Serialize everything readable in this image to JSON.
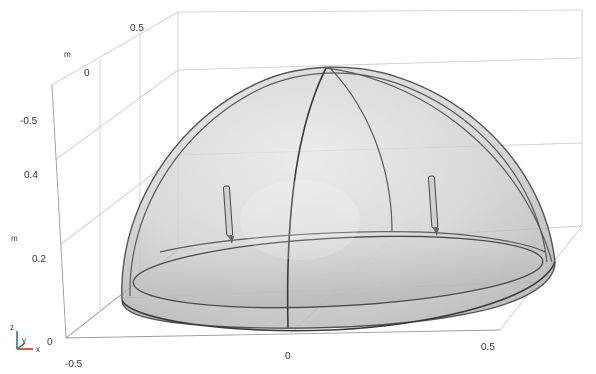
{
  "viewport": {
    "axis_labels": {
      "y_top_tick_05": "0.5",
      "y_unit_m": "m",
      "y_tick_0": "0",
      "y_tick_neg05": "-0.5",
      "z_tick_04": "0.4",
      "z_unit_m": "m",
      "z_tick_02": "0.2",
      "z_tick_0": "0",
      "x_tick_neg05": "-0.5",
      "x_tick_0": "0",
      "x_tick_05": "0.5"
    },
    "triad": {
      "z": "z",
      "y": "y",
      "x": "x"
    },
    "colors": {
      "background": "#ffffff",
      "dome_fill": "#bdbdbd",
      "edges": "#555555",
      "grid": "#c9c9c9",
      "triad_x": "#d62728",
      "triad_y": "#2ca02c",
      "triad_z": "#1f77b4"
    }
  }
}
